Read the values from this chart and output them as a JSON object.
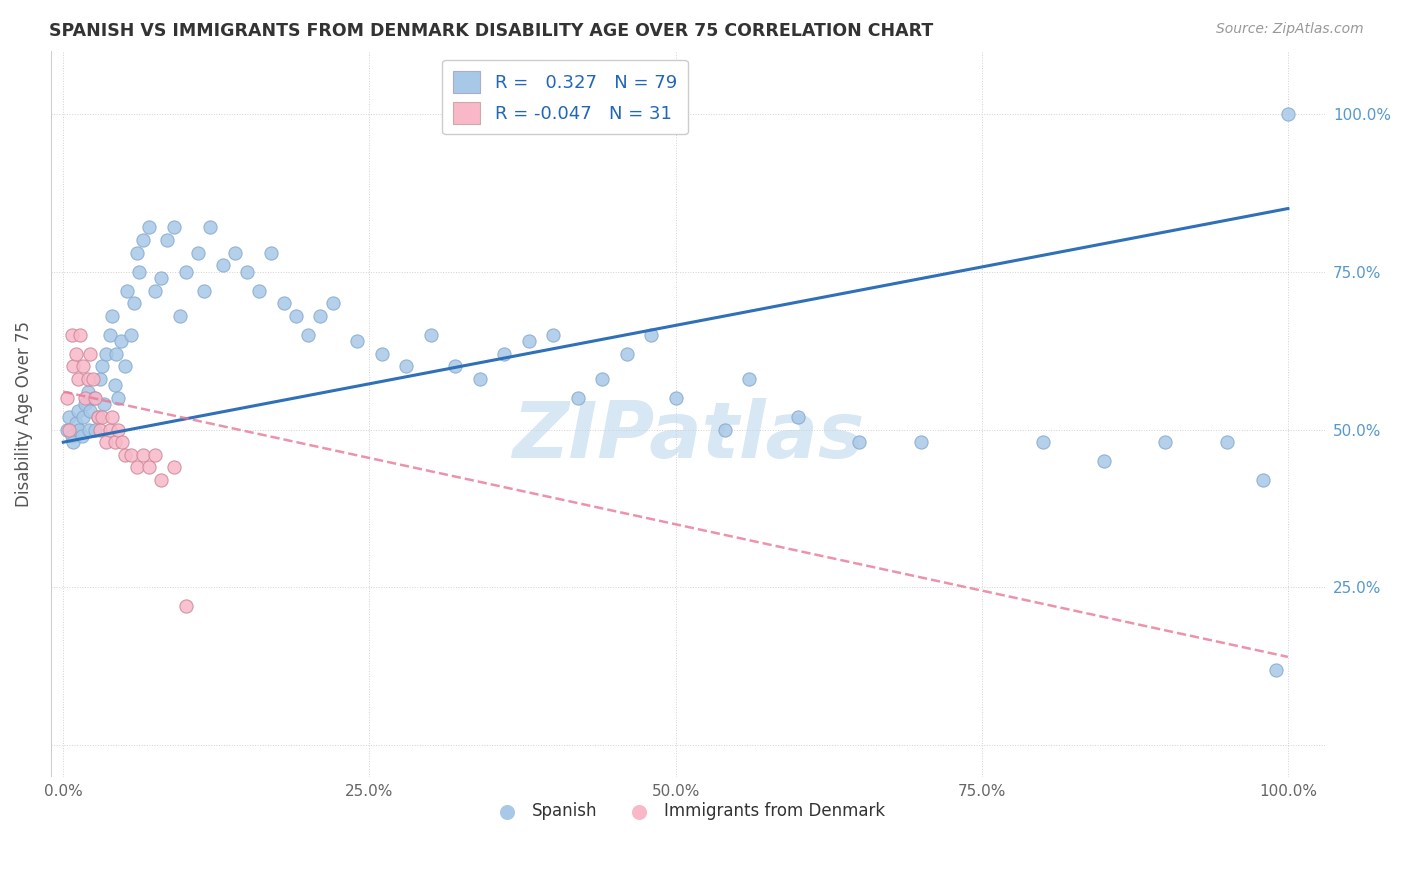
{
  "title": "SPANISH VS IMMIGRANTS FROM DENMARK DISABILITY AGE OVER 75 CORRELATION CHART",
  "source": "Source: ZipAtlas.com",
  "ylabel": "Disability Age Over 75",
  "legend_label1": "Spanish",
  "legend_label2": "Immigrants from Denmark",
  "R1": "0.327",
  "N1": "79",
  "R2": "-0.047",
  "N2": "31",
  "color_blue": "#a8c8e8",
  "color_pink": "#f8b8c8",
  "line_color_blue": "#3070b8",
  "line_color_pink": "#e87898",
  "watermark": "ZIPatlas",
  "xtick_vals": [
    0.0,
    0.25,
    0.5,
    0.75,
    1.0
  ],
  "xtick_labels": [
    "0.0%",
    "25.0%",
    "50.0%",
    "75.0%",
    "100.0%"
  ],
  "ytick_vals": [
    0.0,
    0.25,
    0.5,
    0.75,
    1.0
  ],
  "ytick_labels_right": [
    "",
    "25.0%",
    "50.0%",
    "75.0%",
    "100.0%"
  ],
  "blue_line_x": [
    0.0,
    1.0
  ],
  "blue_line_y": [
    0.48,
    0.85
  ],
  "pink_line_x": [
    0.0,
    1.0
  ],
  "pink_line_y": [
    0.56,
    0.14
  ],
  "spanish_x": [
    0.003,
    0.005,
    0.007,
    0.008,
    0.01,
    0.012,
    0.013,
    0.015,
    0.016,
    0.018,
    0.02,
    0.021,
    0.022,
    0.025,
    0.026,
    0.028,
    0.03,
    0.032,
    0.033,
    0.035,
    0.038,
    0.04,
    0.042,
    0.043,
    0.045,
    0.047,
    0.05,
    0.052,
    0.055,
    0.058,
    0.06,
    0.062,
    0.065,
    0.07,
    0.075,
    0.08,
    0.085,
    0.09,
    0.095,
    0.1,
    0.11,
    0.115,
    0.12,
    0.13,
    0.14,
    0.15,
    0.16,
    0.17,
    0.18,
    0.19,
    0.2,
    0.21,
    0.22,
    0.24,
    0.26,
    0.28,
    0.3,
    0.32,
    0.34,
    0.36,
    0.38,
    0.4,
    0.42,
    0.44,
    0.46,
    0.48,
    0.5,
    0.54,
    0.56,
    0.6,
    0.65,
    0.7,
    0.8,
    0.85,
    0.9,
    0.95,
    0.98,
    0.99,
    1.0
  ],
  "spanish_y": [
    0.5,
    0.52,
    0.49,
    0.48,
    0.51,
    0.53,
    0.5,
    0.49,
    0.52,
    0.54,
    0.56,
    0.5,
    0.53,
    0.55,
    0.5,
    0.52,
    0.58,
    0.6,
    0.54,
    0.62,
    0.65,
    0.68,
    0.57,
    0.62,
    0.55,
    0.64,
    0.6,
    0.72,
    0.65,
    0.7,
    0.78,
    0.75,
    0.8,
    0.82,
    0.72,
    0.74,
    0.8,
    0.82,
    0.68,
    0.75,
    0.78,
    0.72,
    0.82,
    0.76,
    0.78,
    0.75,
    0.72,
    0.78,
    0.7,
    0.68,
    0.65,
    0.68,
    0.7,
    0.64,
    0.62,
    0.6,
    0.65,
    0.6,
    0.58,
    0.62,
    0.64,
    0.65,
    0.55,
    0.58,
    0.62,
    0.65,
    0.55,
    0.5,
    0.58,
    0.52,
    0.48,
    0.48,
    0.48,
    0.45,
    0.48,
    0.48,
    0.42,
    0.12,
    1.0
  ],
  "denmark_x": [
    0.003,
    0.005,
    0.007,
    0.008,
    0.01,
    0.012,
    0.014,
    0.016,
    0.018,
    0.02,
    0.022,
    0.024,
    0.026,
    0.028,
    0.03,
    0.032,
    0.035,
    0.038,
    0.04,
    0.042,
    0.045,
    0.048,
    0.05,
    0.055,
    0.06,
    0.065,
    0.07,
    0.075,
    0.08,
    0.09,
    0.1
  ],
  "denmark_y": [
    0.55,
    0.5,
    0.65,
    0.6,
    0.62,
    0.58,
    0.65,
    0.6,
    0.55,
    0.58,
    0.62,
    0.58,
    0.55,
    0.52,
    0.5,
    0.52,
    0.48,
    0.5,
    0.52,
    0.48,
    0.5,
    0.48,
    0.46,
    0.46,
    0.44,
    0.46,
    0.44,
    0.46,
    0.42,
    0.44,
    0.22
  ]
}
